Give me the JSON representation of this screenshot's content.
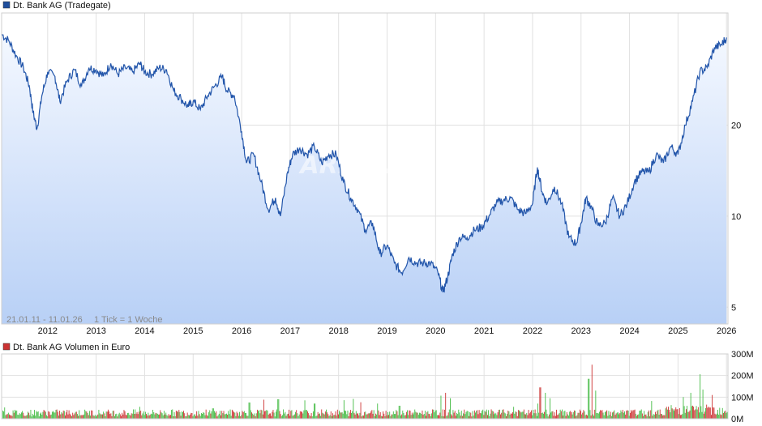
{
  "colors": {
    "price_line": "#2255aa",
    "price_fill_top": "#f4f8ff",
    "price_fill_bottom": "#b8d0f6",
    "grid": "#e1e1e1",
    "volume_up": "#44bb44",
    "volume_down": "#cc3333",
    "legend_price": "#1f4e9c",
    "legend_volume": "#cc3333"
  },
  "watermark": "ARIVA.DE",
  "period_label": "21.01.11 - 11.01.26",
  "tick_label": "1 Tick = 1 Woche",
  "chart_data": [
    {
      "type": "line",
      "legend": "Dt. Bank AG (Tradegate)",
      "y_scale": "log",
      "ylim": [
        4.4,
        47
      ],
      "yticks": [
        5,
        10,
        20
      ],
      "xlim": [
        2011.05,
        2026.03
      ],
      "xticks": [
        "2012",
        "2013",
        "2014",
        "2015",
        "2016",
        "2017",
        "2018",
        "2019",
        "2020",
        "2021",
        "2022",
        "2023",
        "2024",
        "2025",
        "2026"
      ],
      "x": [
        2011.05,
        2011.2,
        2011.35,
        2011.5,
        2011.62,
        2011.7,
        2011.78,
        2011.88,
        2012.0,
        2012.15,
        2012.25,
        2012.4,
        2012.55,
        2012.7,
        2012.85,
        2013.0,
        2013.15,
        2013.3,
        2013.45,
        2013.6,
        2013.75,
        2013.9,
        2014.0,
        2014.15,
        2014.3,
        2014.45,
        2014.6,
        2014.75,
        2014.9,
        2015.0,
        2015.15,
        2015.3,
        2015.45,
        2015.6,
        2015.7,
        2015.85,
        2016.0,
        2016.1,
        2016.25,
        2016.4,
        2016.55,
        2016.7,
        2016.8,
        2016.95,
        2017.05,
        2017.2,
        2017.35,
        2017.5,
        2017.65,
        2017.8,
        2017.95,
        2018.1,
        2018.25,
        2018.4,
        2018.55,
        2018.7,
        2018.85,
        2019.0,
        2019.15,
        2019.3,
        2019.45,
        2019.6,
        2019.75,
        2019.9,
        2020.05,
        2020.15,
        2020.25,
        2020.35,
        2020.5,
        2020.65,
        2020.8,
        2020.95,
        2021.1,
        2021.25,
        2021.4,
        2021.55,
        2021.7,
        2021.85,
        2022.0,
        2022.1,
        2022.2,
        2022.3,
        2022.45,
        2022.6,
        2022.75,
        2022.9,
        2023.0,
        2023.1,
        2023.2,
        2023.35,
        2023.5,
        2023.65,
        2023.8,
        2023.95,
        2024.1,
        2024.25,
        2024.4,
        2024.55,
        2024.7,
        2024.85,
        2025.0,
        2025.15,
        2025.3,
        2025.45,
        2025.6,
        2025.75,
        2025.9,
        2026.0
      ],
      "y": [
        40,
        38,
        34,
        31,
        27,
        22,
        19.5,
        25,
        30,
        29,
        24,
        28,
        30.5,
        27,
        31,
        30.5,
        29,
        32,
        29.5,
        31,
        30,
        32,
        30,
        29.5,
        31,
        30.5,
        26,
        24.5,
        23,
        24,
        22.5,
        25,
        27,
        29,
        26,
        25,
        19,
        15,
        16,
        13,
        10.5,
        11.5,
        10,
        14,
        16,
        16.8,
        16,
        17,
        15,
        16,
        16,
        13,
        11.5,
        10.5,
        9,
        9.5,
        7.5,
        8,
        7,
        6.5,
        7.3,
        7,
        7,
        7,
        6.5,
        5.6,
        6.3,
        7.5,
        8.5,
        8.5,
        9,
        9.2,
        10,
        11,
        11.3,
        11.5,
        10.5,
        10.2,
        11,
        14.5,
        12,
        11,
        12.5,
        11,
        8.5,
        8.1,
        9.5,
        11.5,
        10.8,
        9.3,
        9.5,
        11.5,
        10,
        11,
        13,
        14,
        14,
        16,
        15,
        17,
        16,
        20,
        24,
        30,
        31,
        36,
        37,
        39
      ]
    },
    {
      "type": "bar",
      "legend": "Dt. Bank AG Volumen in Euro",
      "ylim": [
        0,
        300000000
      ],
      "yticks": [
        "0M",
        "100M",
        "200M",
        "300M"
      ],
      "spikes": [
        {
          "x": 2011.1,
          "v": 52000000,
          "dir": "up"
        },
        {
          "x": 2013.9,
          "v": 55000000,
          "dir": "up"
        },
        {
          "x": 2015.4,
          "v": 48000000,
          "dir": "up"
        },
        {
          "x": 2016.15,
          "v": 75000000,
          "dir": "up"
        },
        {
          "x": 2016.45,
          "v": 88000000,
          "dir": "down"
        },
        {
          "x": 2016.75,
          "v": 90000000,
          "dir": "up"
        },
        {
          "x": 2017.3,
          "v": 85000000,
          "dir": "up"
        },
        {
          "x": 2017.5,
          "v": 70000000,
          "dir": "up"
        },
        {
          "x": 2018.1,
          "v": 86000000,
          "dir": "up"
        },
        {
          "x": 2018.3,
          "v": 92000000,
          "dir": "up"
        },
        {
          "x": 2018.45,
          "v": 76000000,
          "dir": "down"
        },
        {
          "x": 2018.8,
          "v": 70000000,
          "dir": "up"
        },
        {
          "x": 2019.25,
          "v": 60000000,
          "dir": "up"
        },
        {
          "x": 2020.1,
          "v": 107000000,
          "dir": "up"
        },
        {
          "x": 2020.2,
          "v": 120000000,
          "dir": "down"
        },
        {
          "x": 2020.3,
          "v": 95000000,
          "dir": "up"
        },
        {
          "x": 2021.6,
          "v": 55000000,
          "dir": "up"
        },
        {
          "x": 2022.1,
          "v": 70000000,
          "dir": "up"
        },
        {
          "x": 2022.15,
          "v": 145000000,
          "dir": "down"
        },
        {
          "x": 2022.25,
          "v": 120000000,
          "dir": "up"
        },
        {
          "x": 2022.35,
          "v": 95000000,
          "dir": "up"
        },
        {
          "x": 2023.15,
          "v": 185000000,
          "dir": "up"
        },
        {
          "x": 2023.22,
          "v": 250000000,
          "dir": "down"
        },
        {
          "x": 2023.3,
          "v": 130000000,
          "dir": "up"
        },
        {
          "x": 2024.45,
          "v": 82000000,
          "dir": "up"
        },
        {
          "x": 2025.1,
          "v": 100000000,
          "dir": "up"
        },
        {
          "x": 2025.25,
          "v": 120000000,
          "dir": "up"
        },
        {
          "x": 2025.45,
          "v": 206000000,
          "dir": "up"
        },
        {
          "x": 2025.5,
          "v": 135000000,
          "dir": "up"
        },
        {
          "x": 2025.7,
          "v": 110000000,
          "dir": "down"
        }
      ],
      "baseline_volume": 30000000
    }
  ]
}
